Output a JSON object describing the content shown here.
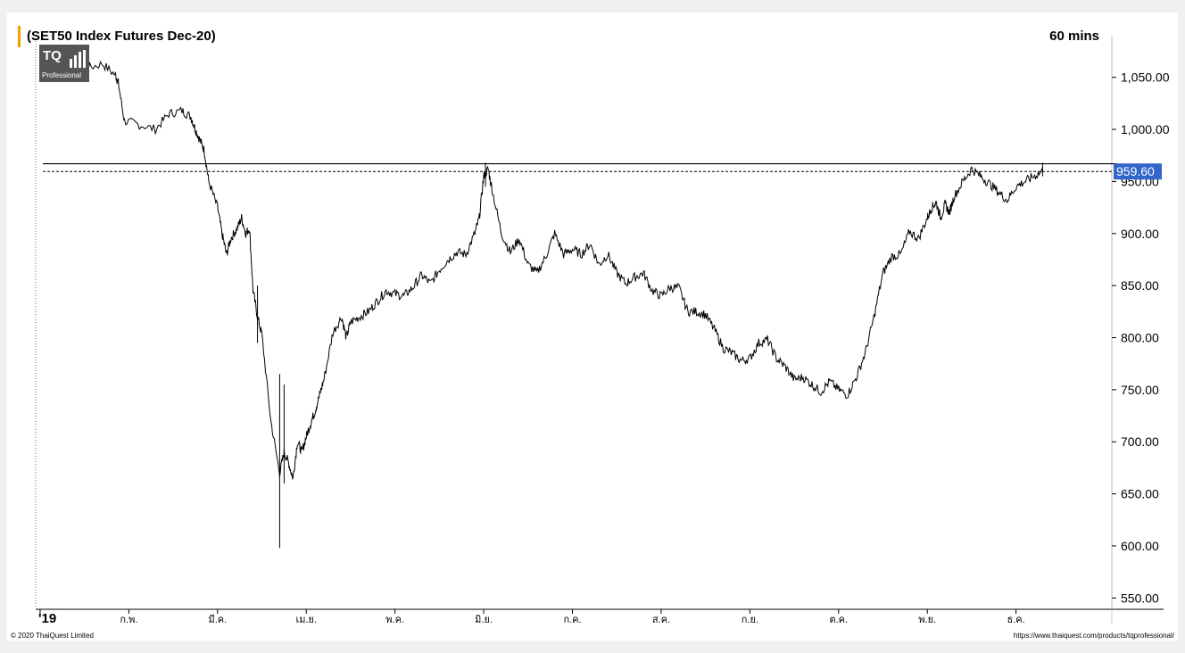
{
  "header": {
    "title": "(SET50 Index Futures Dec-20)",
    "interval": "60 mins"
  },
  "logo": {
    "text": "TQ",
    "subtext": "Professional"
  },
  "footer": {
    "copyright": "© 2020 ThaiQuest Limited",
    "url": "https://www.thaiquest.com/products/tqprofessional/"
  },
  "colors": {
    "price_line": "#000000",
    "current_price_badge": "#3366cc",
    "accent": "#f0a000",
    "axis_dotted": "#c8a000"
  },
  "chart_data": {
    "type": "line",
    "title": "(SET50 Index Futures Dec-20)",
    "interval": "60 mins",
    "y_ticks": [
      "1,050.00",
      "1,000.00",
      "950.00",
      "900.00",
      "850.00",
      "800.00",
      "750.00",
      "700.00",
      "650.00",
      "600.00",
      "550.00"
    ],
    "y_tick_values": [
      1050,
      1000,
      950,
      900,
      850,
      800,
      750,
      700,
      650,
      600,
      550
    ],
    "ylim": [
      540,
      1090
    ],
    "x_ticks": [
      "'19",
      "ก.พ.",
      "มี.ค.",
      "เม.ย.",
      "พ.ค.",
      "มิ.ย.",
      "ก.ค.",
      "ส.ค.",
      "ก.ย.",
      "ต.ค.",
      "พ.ย.",
      "ธ.ค."
    ],
    "x_tick_positions": [
      0,
      1,
      2,
      3,
      4,
      5,
      6,
      7,
      8,
      9,
      10,
      11
    ],
    "xlim": [
      -0.05,
      12.08
    ],
    "current_price": 959.6,
    "current_price_label": "959.60",
    "resistance_line": 967,
    "support_line_dashed": 959.6,
    "series": [
      {
        "x": [
          0.0,
          0.15,
          0.3,
          0.5,
          0.7,
          0.85,
          0.88,
          0.95,
          1.1,
          1.3,
          1.45,
          1.6,
          1.7,
          1.75,
          1.8,
          1.85,
          1.9,
          2.0,
          2.05,
          2.1,
          2.15,
          2.22,
          2.27,
          2.32,
          2.36,
          2.4,
          2.45,
          2.5,
          2.6,
          2.7,
          2.75,
          2.8,
          2.85,
          2.9,
          2.95,
          3.0,
          3.05,
          3.1,
          3.15,
          3.2,
          3.3,
          3.4,
          3.45,
          3.5,
          3.6,
          3.7,
          3.8,
          3.9,
          4.0,
          4.1,
          4.2,
          4.3,
          4.4,
          4.5,
          4.6,
          4.7,
          4.8,
          4.9,
          4.95,
          5.0,
          5.05,
          5.1,
          5.2,
          5.3,
          5.4,
          5.5,
          5.6,
          5.7,
          5.8,
          5.9,
          6.0,
          6.1,
          6.2,
          6.3,
          6.4,
          6.5,
          6.6,
          6.7,
          6.8,
          6.9,
          7.0,
          7.1,
          7.2,
          7.3,
          7.4,
          7.5,
          7.6,
          7.7,
          7.8,
          7.9,
          8.0,
          8.1,
          8.2,
          8.3,
          8.4,
          8.5,
          8.6,
          8.7,
          8.8,
          8.9,
          9.0,
          9.1,
          9.2,
          9.3,
          9.4,
          9.5,
          9.6,
          9.7,
          9.8,
          9.9,
          10.0,
          10.05,
          10.1,
          10.15,
          10.2,
          10.25,
          10.3,
          10.4,
          10.5,
          10.6,
          10.7,
          10.8,
          10.9,
          11.0,
          11.1,
          11.2,
          11.3
        ],
        "y": [
          1060,
          1050,
          1062,
          1058,
          1063,
          1052,
          1045,
          1008,
          1005,
          1000,
          1015,
          1018,
          1012,
          1000,
          990,
          980,
          950,
          925,
          900,
          880,
          895,
          905,
          915,
          900,
          905,
          845,
          820,
          803,
          720,
          670,
          690,
          680,
          665,
          700,
          690,
          705,
          718,
          730,
          745,
          760,
          805,
          820,
          800,
          815,
          820,
          825,
          835,
          845,
          842,
          840,
          848,
          860,
          852,
          865,
          875,
          882,
          880,
          900,
          915,
          955,
          962,
          940,
          900,
          882,
          895,
          870,
          862,
          878,
          900,
          880,
          885,
          880,
          890,
          870,
          880,
          862,
          852,
          858,
          862,
          845,
          840,
          848,
          848,
          825,
          825,
          822,
          808,
          790,
          785,
          778,
          780,
          795,
          798,
          780,
          772,
          760,
          762,
          755,
          748,
          758,
          750,
          745,
          762,
          785,
          820,
          862,
          878,
          880,
          902,
          895,
          915,
          925,
          930,
          915,
          928,
          920,
          935,
          950,
          962,
          955,
          948,
          940,
          932,
          945,
          950,
          955,
          959.6
        ]
      }
    ]
  }
}
